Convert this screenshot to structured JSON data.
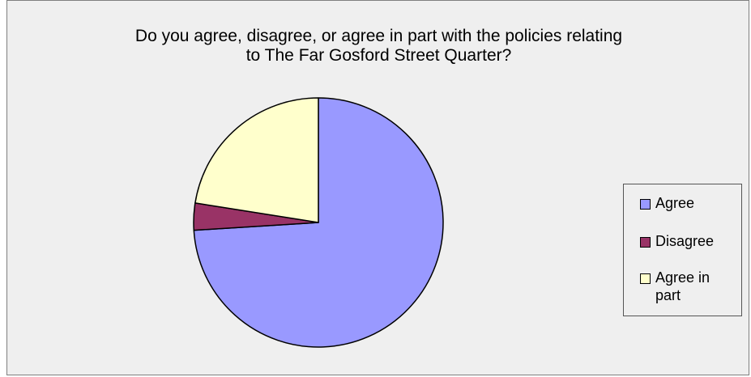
{
  "chart_data": {
    "type": "pie",
    "title": "Do you agree, disagree, or agree in part with the policies relating to The Far Gosford Street Quarter?",
    "title_lines": [
      "Do you agree, disagree, or agree in part with the policies relating",
      "to The Far Gosford Street Quarter?"
    ],
    "categories": [
      "Agree",
      "Disagree",
      "Agree in part"
    ],
    "values": [
      74,
      3.5,
      22.5
    ],
    "colors": [
      "#9999ff",
      "#993366",
      "#ffffcc"
    ],
    "legend_position": "right",
    "start_angle": "12 o'clock, clockwise"
  }
}
